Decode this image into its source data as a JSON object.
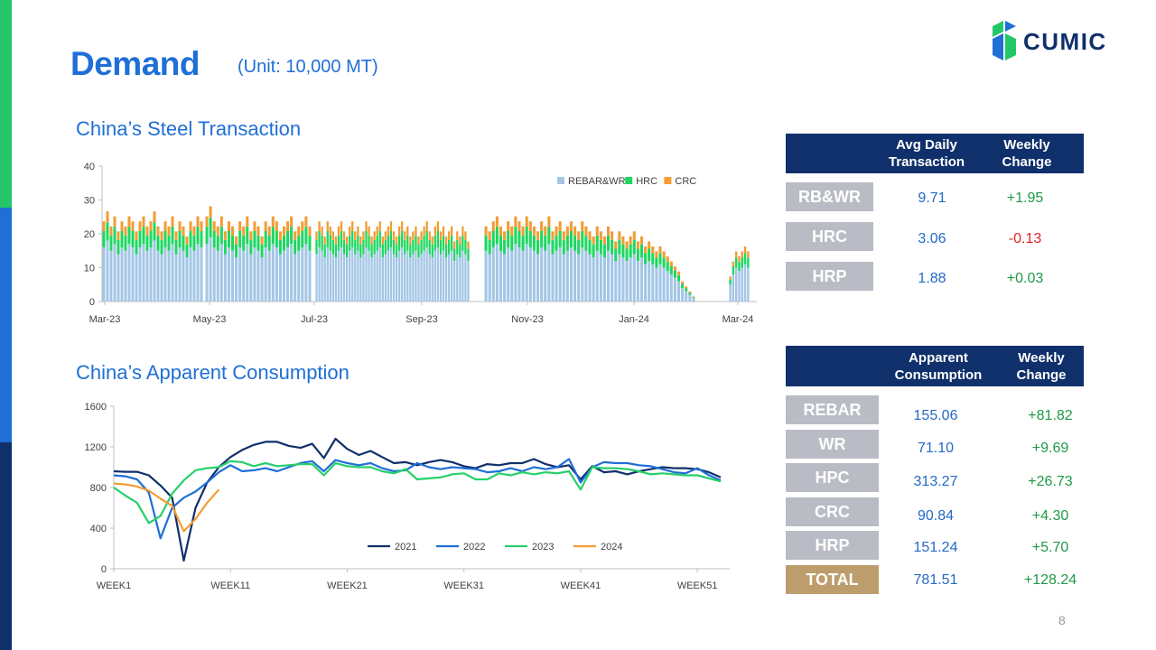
{
  "page": {
    "title": "Demand",
    "unit": "(Unit: 10,000 MT)",
    "page_number": "8"
  },
  "logo": {
    "text": "CUMIC"
  },
  "colors": {
    "accent_blue": "#1f6fd6",
    "header_navy": "#10306b",
    "label_gray": "#b9bcc4",
    "total_gold": "#bd9d6b",
    "positive_green": "#1f9a46",
    "negative_red": "#e22424"
  },
  "charts": {
    "transaction_title": "China’s Steel Transaction",
    "consumption_title": "China’s Apparent Consumption"
  },
  "transaction_table": {
    "headers": [
      "Avg Daily Transaction",
      "Weekly Change"
    ],
    "rows": [
      {
        "label": "RB&WR",
        "value": "9.71",
        "change": "+1.95"
      },
      {
        "label": "HRC",
        "value": "3.06",
        "change": "-0.13"
      },
      {
        "label": "HRP",
        "value": "1.88",
        "change": "+0.03"
      }
    ]
  },
  "consumption_table": {
    "headers": [
      "Apparent Consumption",
      "Weekly Change"
    ],
    "rows": [
      {
        "label": "REBAR",
        "value": "155.06",
        "change": "+81.82"
      },
      {
        "label": "WR",
        "value": "71.10",
        "change": "+9.69"
      },
      {
        "label": "HPC",
        "value": "313.27",
        "change": "+26.73"
      },
      {
        "label": "CRC",
        "value": "90.84",
        "change": "+4.30"
      },
      {
        "label": "HRP",
        "value": "151.24",
        "change": "+5.70"
      },
      {
        "label": "TOTAL",
        "value": "781.51",
        "change": "+128.24"
      }
    ]
  },
  "chart_data": [
    {
      "type": "bar",
      "stacked": true,
      "title": "China’s Steel Transaction",
      "ylim": [
        0,
        40
      ],
      "yticks": [
        0,
        10,
        20,
        30,
        40
      ],
      "xticks": [
        "Mar-23",
        "May-23",
        "Jul-23",
        "Sep-23",
        "Nov-23",
        "Jan-24",
        "Mar-24"
      ],
      "legend_position": "top-right",
      "grid": false,
      "series": [
        {
          "name": "REBAR&WR",
          "color": "#a3c6e6"
        },
        {
          "name": "HRC",
          "color": "#1ed760"
        },
        {
          "name": "CRC",
          "color": "#f39c33"
        }
      ],
      "segments": [
        {
          "rebar": [
            16,
            18,
            15,
            17,
            14,
            16,
            15,
            17,
            16,
            14,
            16,
            17,
            15,
            16,
            18,
            15,
            14,
            16,
            15,
            17,
            14,
            16,
            15,
            13,
            16,
            15,
            17,
            16
          ]
        },
        {
          "rebar": [
            17,
            19,
            16,
            15,
            17,
            14,
            16,
            15,
            13,
            16,
            15,
            17,
            14,
            16,
            15,
            13,
            16,
            15,
            17,
            16,
            14,
            15,
            16,
            17,
            14,
            15,
            16,
            17,
            15
          ]
        },
        {
          "rebar": [
            14,
            16,
            15,
            13,
            16,
            15,
            14,
            13,
            15,
            16,
            14,
            13,
            15,
            16,
            14,
            15,
            13,
            14,
            16,
            15,
            13,
            14,
            15,
            16,
            13,
            14,
            15,
            16,
            14,
            13,
            15,
            16,
            14,
            15,
            13,
            14,
            15,
            13,
            14,
            15,
            16,
            14,
            13,
            15,
            16,
            14,
            15,
            13,
            14,
            15,
            12,
            14,
            13,
            15,
            14,
            12
          ]
        },
        {
          "rebar": [
            15,
            14,
            16,
            17,
            15,
            14,
            16,
            15,
            17,
            16,
            15,
            17,
            16,
            15,
            14,
            16,
            15,
            17,
            14,
            15,
            16,
            14,
            15,
            16,
            15,
            14,
            16,
            15,
            14,
            13,
            15,
            14,
            13,
            15,
            14,
            12,
            14,
            13,
            12,
            13,
            14,
            12,
            13,
            11,
            12,
            11,
            10,
            11,
            10,
            9,
            8,
            7,
            6,
            4,
            3,
            2,
            1
          ]
        },
        {
          "rebar": [
            5,
            8,
            10,
            9,
            10,
            11,
            10
          ]
        }
      ]
    },
    {
      "type": "line",
      "title": "China’s Apparent Consumption",
      "ylim": [
        0,
        1600
      ],
      "yticks": [
        0,
        400,
        800,
        1200,
        1600
      ],
      "xlim": [
        1,
        53
      ],
      "xticks": [
        1,
        11,
        21,
        31,
        41,
        51
      ],
      "xtick_labels": [
        "WEEK1",
        "WEEK11",
        "WEEK21",
        "WEEK31",
        "WEEK41",
        "WEEK51"
      ],
      "legend_position": "bottom-center",
      "grid": false,
      "series": [
        {
          "name": "2021",
          "color": "#10306b",
          "values": [
            960,
            955,
            955,
            920,
            820,
            700,
            80,
            600,
            850,
            1000,
            1100,
            1170,
            1220,
            1250,
            1250,
            1210,
            1190,
            1230,
            1090,
            1280,
            1180,
            1120,
            1160,
            1100,
            1040,
            1050,
            1020,
            1050,
            1070,
            1050,
            1010,
            990,
            1030,
            1020,
            1040,
            1040,
            1080,
            1030,
            1000,
            1020,
            880,
            1010,
            950,
            960,
            930,
            960,
            980,
            1000,
            990,
            990,
            980,
            950,
            900
          ]
        },
        {
          "name": "2022",
          "color": "#1f6fd6",
          "values": [
            920,
            910,
            880,
            750,
            300,
            600,
            700,
            760,
            850,
            950,
            1020,
            960,
            970,
            990,
            960,
            1000,
            1040,
            1060,
            960,
            1070,
            1040,
            1020,
            1040,
            990,
            960,
            970,
            1040,
            1000,
            980,
            1000,
            990,
            980,
            950,
            960,
            990,
            960,
            1000,
            980,
            1000,
            1080,
            850,
            1000,
            1050,
            1040,
            1040,
            1020,
            1010,
            980,
            950,
            940,
            990,
            920,
            870
          ]
        },
        {
          "name": "2023",
          "color": "#26d06a",
          "values": [
            800,
            720,
            650,
            450,
            520,
            740,
            870,
            970,
            990,
            1000,
            1060,
            1050,
            1010,
            1040,
            1010,
            1020,
            1030,
            1030,
            920,
            1040,
            1010,
            1000,
            1000,
            960,
            940,
            980,
            880,
            890,
            900,
            930,
            940,
            880,
            880,
            940,
            920,
            950,
            930,
            950,
            940,
            960,
            780,
            1000,
            990,
            990,
            980,
            960,
            930,
            940,
            930,
            920,
            920,
            890,
            860
          ]
        },
        {
          "name": "2024",
          "color": "#f39c33",
          "values": [
            840,
            830,
            810,
            770,
            690,
            620,
            370,
            490,
            650,
            780
          ]
        }
      ]
    }
  ]
}
